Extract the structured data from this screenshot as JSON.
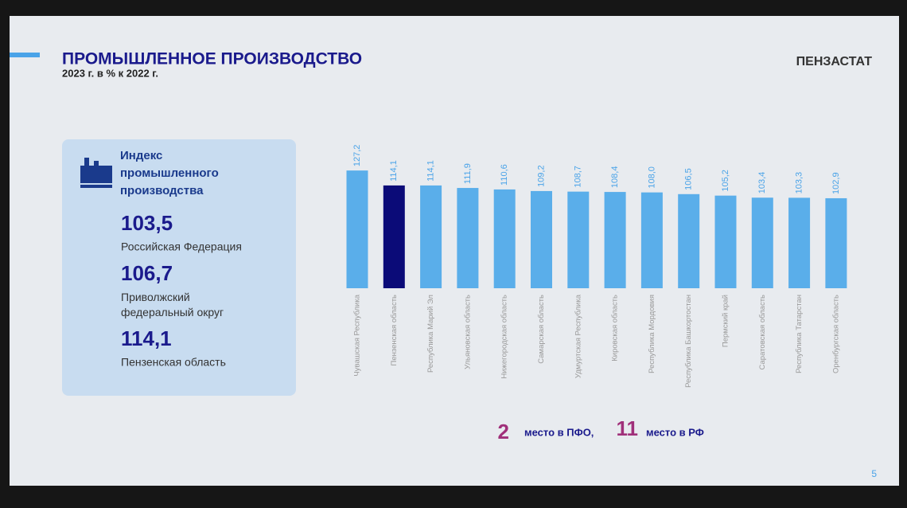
{
  "header": {
    "title": "ПРОМЫШЛЕННОЕ ПРОИЗВОДСТВО",
    "subtitle": "2023 г. в % к 2022 г.",
    "brand": "ПЕНЗАСТАТ"
  },
  "panel": {
    "title": "Индекс промышленного производства",
    "items": [
      {
        "value": "103,5",
        "label": "Российская Федерация"
      },
      {
        "value": "106,7",
        "label": "Приволжский федеральный округ"
      },
      {
        "value": "114,1",
        "label": "Пензенская область"
      }
    ]
  },
  "footer": {
    "rank_pfo": "2",
    "rank_pfo_text": "место в ПФО,",
    "rank_rf": "11",
    "rank_rf_text": "место в РФ",
    "page": "5"
  },
  "chart_data": {
    "type": "bar",
    "categories": [
      "Чувашская Республика",
      "Пензенская область",
      "Республика Марий Эл",
      "Ульяновская область",
      "Нижегородская область",
      "Самарская область",
      "Удмуртская Республика",
      "Кировская область",
      "Республика Мордовия",
      "Республика Башкортостан",
      "Пермский край",
      "Саратовская область",
      "Республика Татарстан",
      "Оренбургская область"
    ],
    "values": [
      127.2,
      114.1,
      114.1,
      111.9,
      110.6,
      109.2,
      108.7,
      108.4,
      108.0,
      106.5,
      105.2,
      103.4,
      103.3,
      102.9
    ],
    "value_labels": [
      "127,2",
      "114,1",
      "114,1",
      "111,9",
      "110,6",
      "109,2",
      "108,7",
      "108,4",
      "108,0",
      "106,5",
      "105,2",
      "103,4",
      "103,3",
      "102,9"
    ],
    "colors": [
      "#5aaeea",
      "#0b0b78",
      "#5aaeea",
      "#5aaeea",
      "#5aaeea",
      "#5aaeea",
      "#5aaeea",
      "#5aaeea",
      "#5aaeea",
      "#5aaeea",
      "#5aaeea",
      "#5aaeea",
      "#5aaeea",
      "#5aaeea"
    ],
    "ylim": [
      24,
      128
    ]
  }
}
